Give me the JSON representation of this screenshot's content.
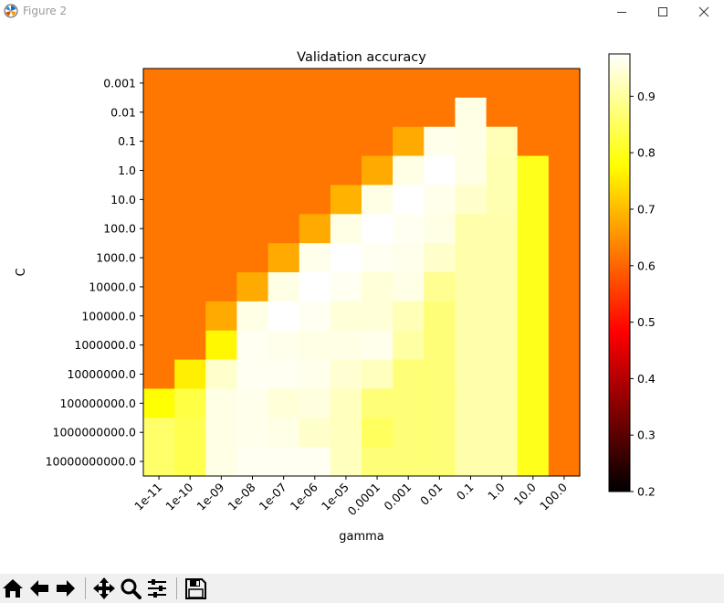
{
  "window": {
    "title": "Figure 2",
    "app_icon": "matplotlib-logo-icon",
    "controls": [
      "minimize-icon",
      "maximize-icon",
      "close-icon"
    ]
  },
  "toolbar": {
    "buttons": [
      "home-icon",
      "back-arrow-icon",
      "forward-arrow-icon",
      "pan-icon",
      "zoom-icon",
      "subplots-config-icon",
      "save-icon"
    ]
  },
  "chart_data": {
    "type": "heatmap",
    "title": "Validation accuracy",
    "xlabel": "gamma",
    "ylabel": "C",
    "x_categories": [
      "1e-11",
      "1e-10",
      "1e-09",
      "1e-08",
      "1e-07",
      "1e-06",
      "1e-05",
      "0.0001",
      "0.001",
      "0.01",
      "0.1",
      "1.0",
      "10.0",
      "100.0"
    ],
    "y_categories": [
      "0.001",
      "0.01",
      "0.1",
      "1.0",
      "10.0",
      "100.0",
      "1000.0",
      "10000.0",
      "100000.0",
      "1000000.0",
      "10000000.0",
      "100000000.0",
      "1000000000.0",
      "10000000000.0"
    ],
    "values": [
      [
        0.62,
        0.62,
        0.62,
        0.62,
        0.62,
        0.62,
        0.62,
        0.62,
        0.62,
        0.62,
        0.62,
        0.62,
        0.62,
        0.62
      ],
      [
        0.62,
        0.62,
        0.62,
        0.62,
        0.62,
        0.62,
        0.62,
        0.62,
        0.62,
        0.62,
        0.955,
        0.62,
        0.62,
        0.62
      ],
      [
        0.62,
        0.62,
        0.62,
        0.62,
        0.62,
        0.62,
        0.62,
        0.62,
        0.68,
        0.96,
        0.955,
        0.92,
        0.62,
        0.62
      ],
      [
        0.62,
        0.62,
        0.62,
        0.62,
        0.62,
        0.62,
        0.62,
        0.68,
        0.955,
        0.975,
        0.955,
        0.915,
        0.8,
        0.62
      ],
      [
        0.62,
        0.62,
        0.62,
        0.62,
        0.62,
        0.62,
        0.69,
        0.955,
        0.975,
        0.96,
        0.935,
        0.915,
        0.8,
        0.62
      ],
      [
        0.62,
        0.62,
        0.62,
        0.62,
        0.62,
        0.68,
        0.955,
        0.975,
        0.965,
        0.955,
        0.91,
        0.91,
        0.8,
        0.62
      ],
      [
        0.62,
        0.62,
        0.62,
        0.62,
        0.68,
        0.96,
        0.975,
        0.965,
        0.96,
        0.935,
        0.91,
        0.91,
        0.8,
        0.62
      ],
      [
        0.62,
        0.62,
        0.62,
        0.68,
        0.955,
        0.975,
        0.965,
        0.945,
        0.955,
        0.89,
        0.91,
        0.91,
        0.8,
        0.62
      ],
      [
        0.62,
        0.62,
        0.68,
        0.955,
        0.975,
        0.965,
        0.945,
        0.945,
        0.92,
        0.87,
        0.91,
        0.91,
        0.8,
        0.62
      ],
      [
        0.62,
        0.62,
        0.77,
        0.965,
        0.96,
        0.955,
        0.955,
        0.96,
        0.905,
        0.87,
        0.91,
        0.91,
        0.8,
        0.62
      ],
      [
        0.62,
        0.76,
        0.935,
        0.965,
        0.965,
        0.96,
        0.94,
        0.925,
        0.87,
        0.87,
        0.91,
        0.91,
        0.8,
        0.62
      ],
      [
        0.78,
        0.83,
        0.955,
        0.96,
        0.945,
        0.95,
        0.925,
        0.87,
        0.87,
        0.87,
        0.91,
        0.91,
        0.8,
        0.62
      ],
      [
        0.86,
        0.84,
        0.955,
        0.96,
        0.955,
        0.935,
        0.925,
        0.85,
        0.87,
        0.87,
        0.91,
        0.91,
        0.8,
        0.62
      ],
      [
        0.86,
        0.84,
        0.955,
        0.965,
        0.965,
        0.965,
        0.925,
        0.87,
        0.87,
        0.87,
        0.91,
        0.91,
        0.8,
        0.62
      ]
    ],
    "vmin": 0.2,
    "vmax": 0.975,
    "colormap": "hot",
    "colorbar_ticks": [
      0.2,
      0.3,
      0.4,
      0.5,
      0.6,
      0.7,
      0.8,
      0.9
    ],
    "colorbar_tick_labels": [
      "0.2",
      "0.3",
      "0.4",
      "0.5",
      "0.6",
      "0.7",
      "0.8",
      "0.9"
    ]
  }
}
